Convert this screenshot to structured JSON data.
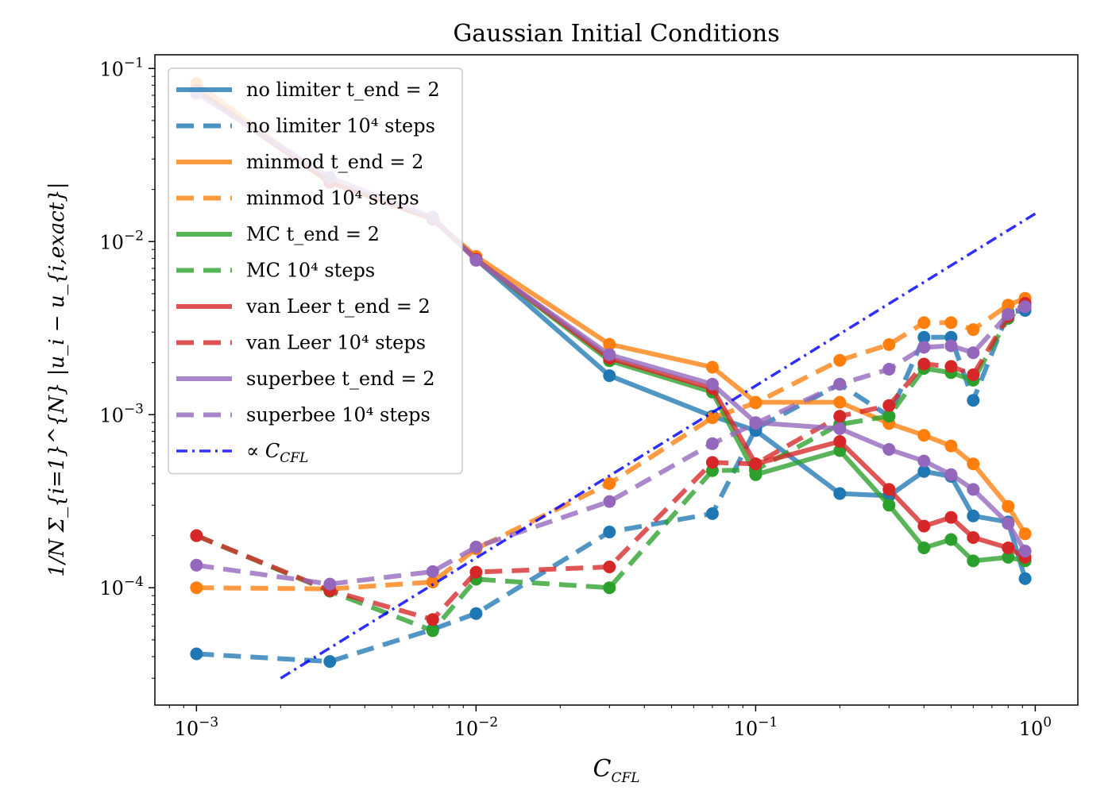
{
  "chart_data": {
    "type": "line",
    "title": "Gaussian Initial Conditions",
    "xlabel": "C",
    "xlabel_sub": "CFL",
    "ylabel": "1/N Σ_{i=1}^{N} |u_i − u_{i,exact}|",
    "xscale": "log",
    "yscale": "log",
    "xlim": [
      0.00071,
      1.42
    ],
    "ylim": [
      2.1e-05,
      0.12
    ],
    "x_ticks": [
      {
        "base": "10",
        "exp": "−3"
      },
      {
        "base": "10",
        "exp": "−2"
      },
      {
        "base": "10",
        "exp": "−1"
      },
      {
        "base": "10",
        "exp": "0"
      }
    ],
    "y_ticks": [
      {
        "base": "10",
        "exp": "−4"
      },
      {
        "base": "10",
        "exp": "−3"
      },
      {
        "base": "10",
        "exp": "−2"
      },
      {
        "base": "10",
        "exp": "−1"
      }
    ],
    "grid": false,
    "legend_position": "upper-left",
    "x": [
      0.001,
      0.003,
      0.007,
      0.01,
      0.03,
      0.07,
      0.1,
      0.2,
      0.3,
      0.4,
      0.5,
      0.6,
      0.8,
      0.92
    ],
    "series": [
      {
        "name": "no limiter",
        "suffix": "t_end = 2",
        "style": "solid",
        "color": "#1f77b4",
        "values": [
          0.075,
          0.022,
          0.0135,
          0.0079,
          0.00168,
          0.00098,
          0.00081,
          0.00035,
          0.00034,
          0.00047,
          0.00044,
          0.00026,
          0.00024,
          0.000113
        ]
      },
      {
        "name": "no limiter",
        "suffix": "10⁴ steps",
        "style": "dashed",
        "color": "#1f77b4",
        "values": [
          4.15e-05,
          3.75e-05,
          5.75e-05,
          7.1e-05,
          0.00021,
          0.000268,
          0.00083,
          0.0015,
          0.00098,
          0.0028,
          0.0028,
          0.00121,
          0.0039,
          0.004
        ]
      },
      {
        "name": "minmod",
        "suffix": "t_end = 2",
        "style": "solid",
        "color": "#ff7f0e",
        "values": [
          0.082,
          0.022,
          0.0135,
          0.0082,
          0.00255,
          0.00188,
          0.00118,
          0.00118,
          0.00089,
          0.00076,
          0.00066,
          0.00052,
          0.000295,
          0.000205
        ]
      },
      {
        "name": "minmod",
        "suffix": "10⁴ steps",
        "style": "dashed",
        "color": "#ff7f0e",
        "values": [
          0.0001,
          9.85e-05,
          0.000108,
          0.000168,
          0.0004,
          0.00096,
          0.00117,
          0.00206,
          0.00254,
          0.0034,
          0.0034,
          0.0031,
          0.0043,
          0.0047
        ]
      },
      {
        "name": "MC",
        "suffix": "t_end = 2",
        "style": "solid",
        "color": "#2ca02c",
        "values": [
          0.075,
          0.022,
          0.0135,
          0.0079,
          0.00205,
          0.00135,
          0.00045,
          0.00062,
          0.0003,
          0.00017,
          0.00019,
          0.000143,
          0.00015,
          0.000143
        ]
      },
      {
        "name": "MC",
        "suffix": "10⁴ steps",
        "style": "dashed",
        "color": "#2ca02c",
        "values": [
          0.0002,
          9.55e-05,
          5.65e-05,
          0.000112,
          0.0001,
          0.000475,
          0.00048,
          0.00088,
          0.00098,
          0.00185,
          0.00175,
          0.00158,
          0.0036,
          0.0043
        ]
      },
      {
        "name": "van Leer",
        "suffix": "t_end = 2",
        "style": "solid",
        "color": "#d62728",
        "values": [
          0.075,
          0.022,
          0.0135,
          0.0079,
          0.00212,
          0.00142,
          0.00052,
          0.0007,
          0.00037,
          0.000227,
          0.000255,
          0.000195,
          0.00017,
          0.00015
        ]
      },
      {
        "name": "van Leer",
        "suffix": "10⁴ steps",
        "style": "dashed",
        "color": "#d62728",
        "values": [
          0.0002,
          9.65e-05,
          6.55e-05,
          0.000123,
          0.000132,
          0.00053,
          0.00052,
          0.00098,
          0.00113,
          0.00196,
          0.0019,
          0.0017,
          0.0037,
          0.0044
        ]
      },
      {
        "name": "superbee",
        "suffix": "t_end = 2",
        "style": "solid",
        "color": "#9467bd",
        "values": [
          0.072,
          0.0235,
          0.0138,
          0.0078,
          0.00222,
          0.0015,
          0.0009,
          0.00083,
          0.00063,
          0.00054,
          0.00045,
          0.00037,
          0.000235,
          0.000163
        ]
      },
      {
        "name": "superbee",
        "suffix": "10⁴ steps",
        "style": "dashed",
        "color": "#9467bd",
        "values": [
          0.000135,
          0.000105,
          0.000124,
          0.000172,
          0.000315,
          0.00068,
          0.00089,
          0.0015,
          0.00183,
          0.00245,
          0.0025,
          0.00228,
          0.0038,
          0.0042
        ]
      }
    ],
    "reference_line": {
      "name": "∝ C",
      "name_sub": "CFL",
      "style": "dashdot",
      "color": "#0000ff",
      "x": [
        0.002,
        1.0
      ],
      "values": [
        3e-05,
        0.0145
      ]
    }
  }
}
